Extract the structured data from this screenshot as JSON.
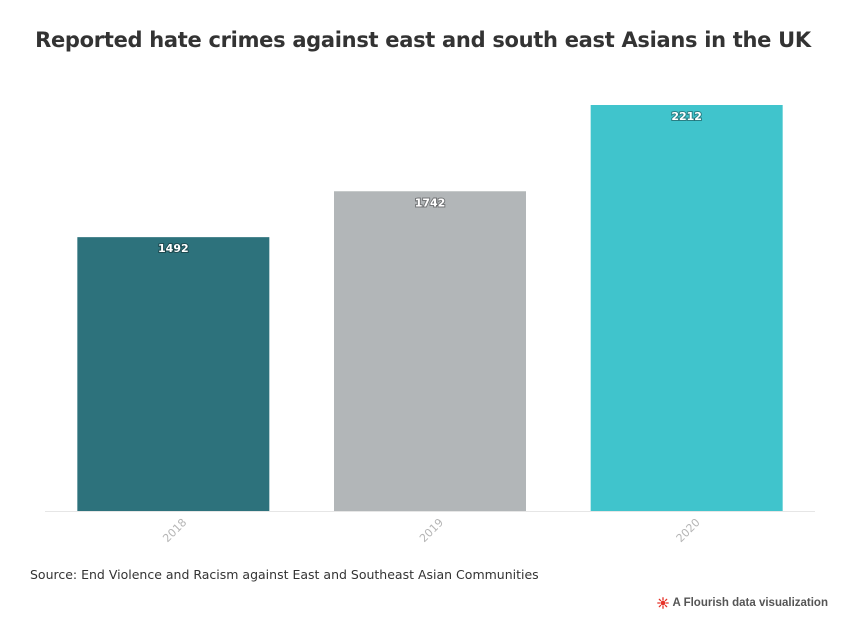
{
  "title": "Reported hate crimes against east and south east Asians in the UK",
  "source": "Source: End Violence and Racism against East and Southeast Asian Communities",
  "credit": {
    "label": "A Flourish data visualization",
    "icon": "flourish-logo-icon",
    "icon_color": "#e63329"
  },
  "chart_data": {
    "type": "bar",
    "categories": [
      "2018",
      "2019",
      "2020"
    ],
    "values": [
      1492,
      1742,
      2212
    ],
    "colors": [
      "#2d727c",
      "#b2b6b8",
      "#40c4cc"
    ],
    "title": "Reported hate crimes against east and south east Asians in the UK",
    "xlabel": "",
    "ylabel": "",
    "ylim": [
      0,
      2212
    ],
    "grid": false,
    "data_labels": true,
    "tick_label_rotation": "-45deg"
  }
}
